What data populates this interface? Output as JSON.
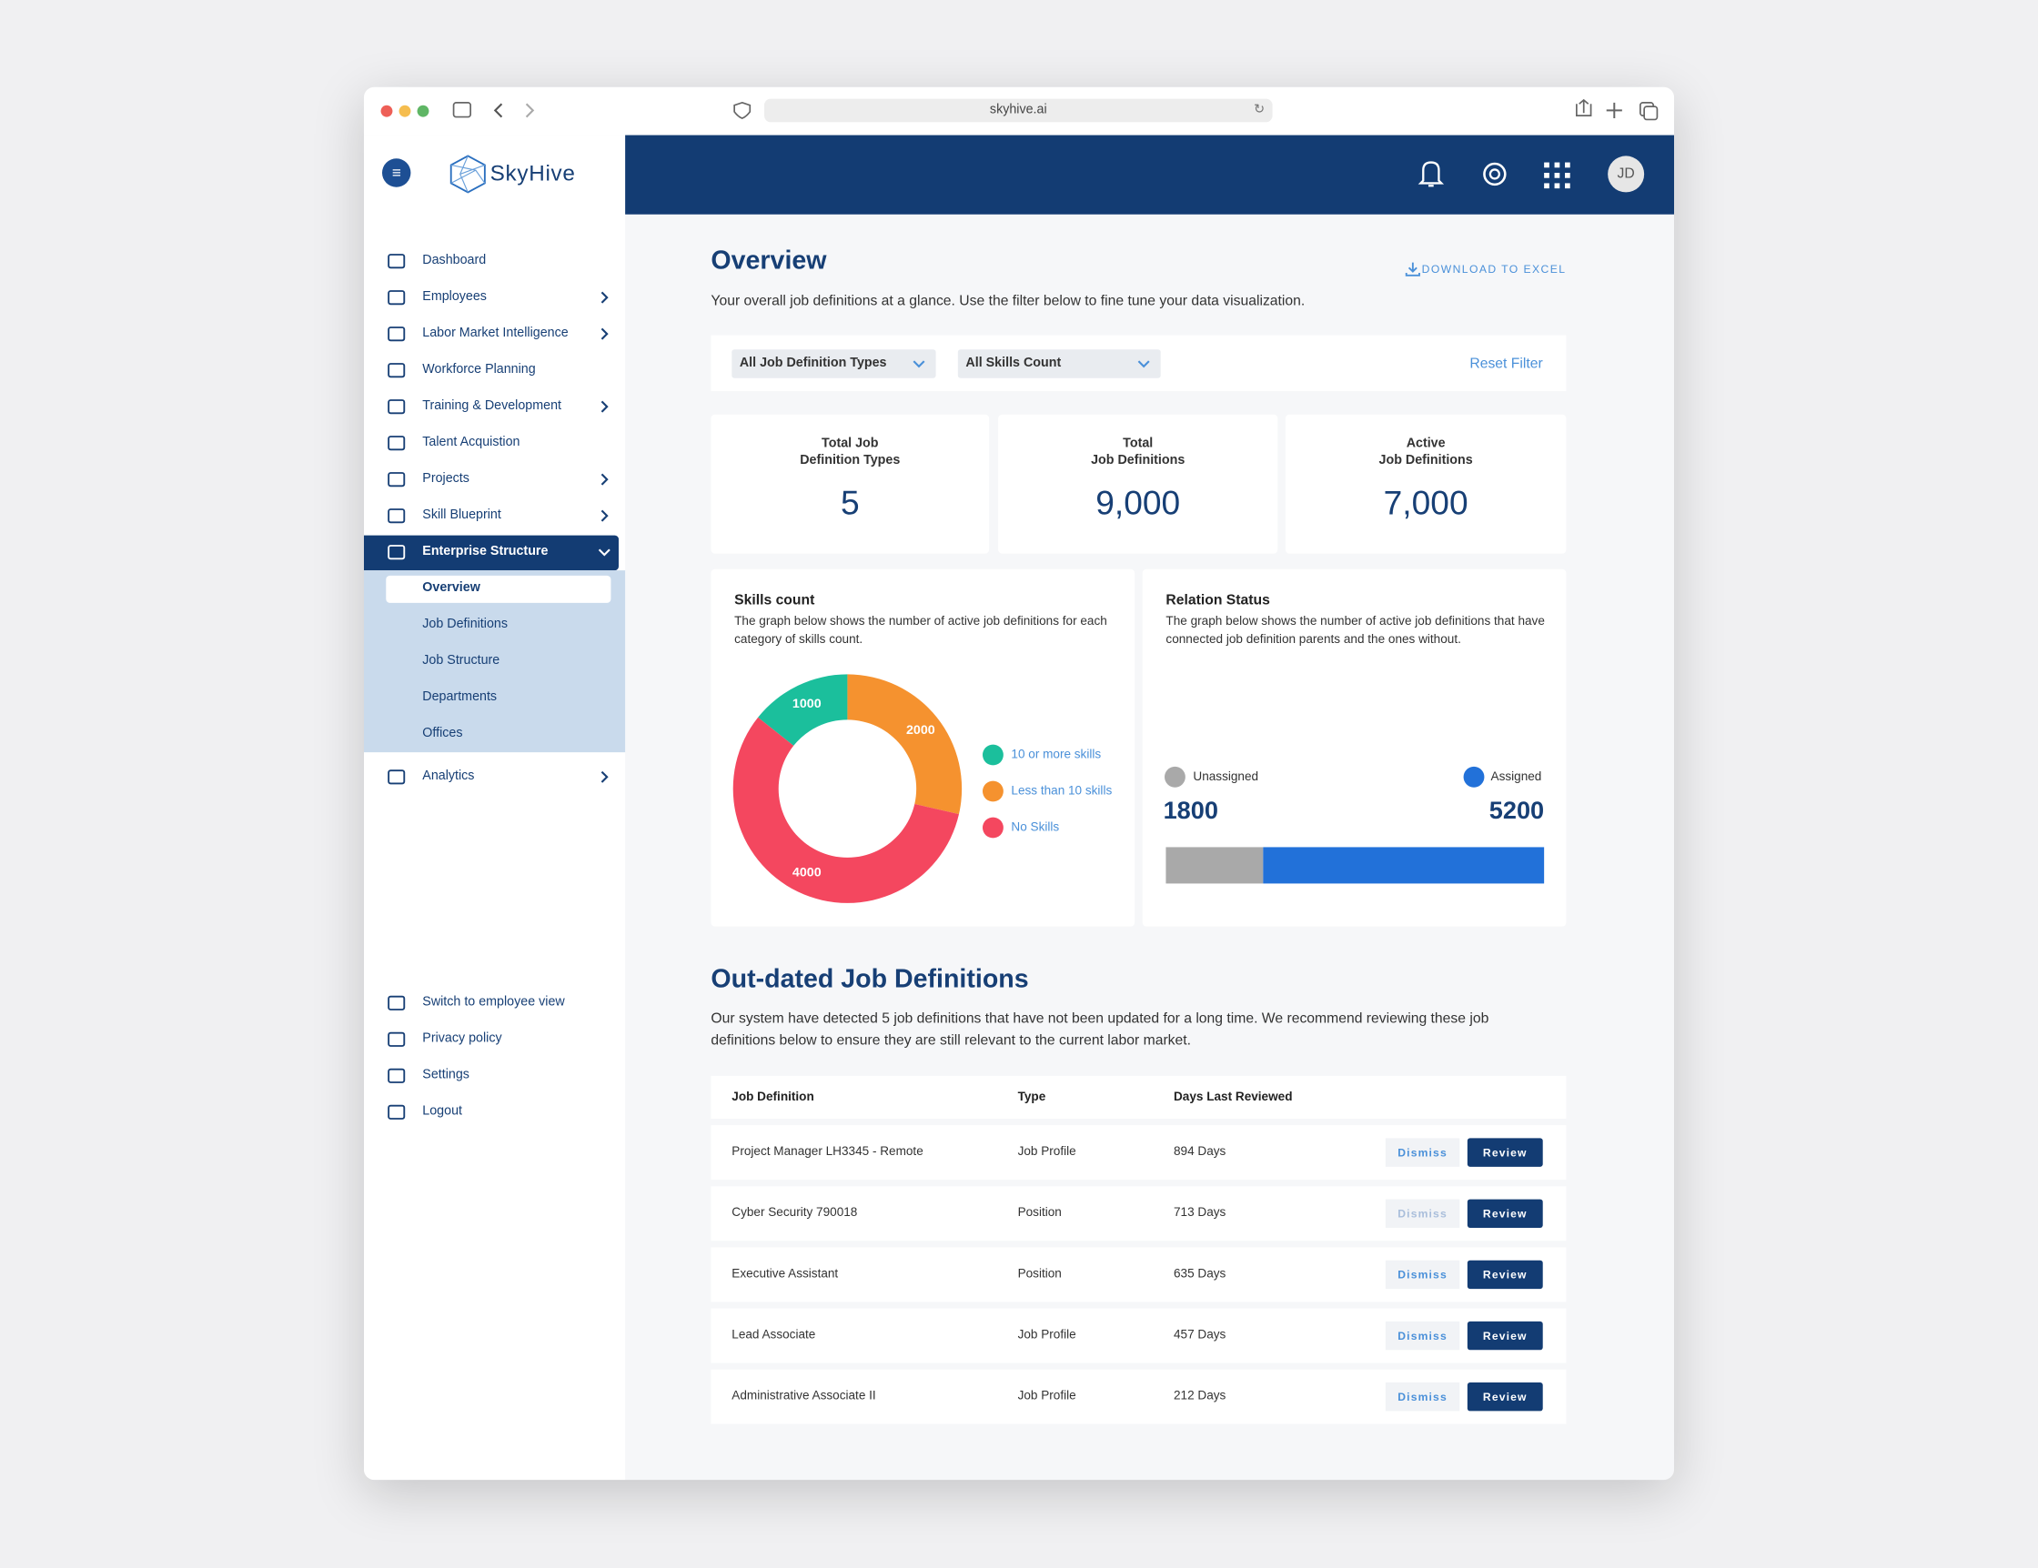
{
  "browser": {
    "url": "skyhive.ai"
  },
  "brand": "SkyHive",
  "user_initials": "JD",
  "sidebar": {
    "menu": [
      "Dashboard",
      "Employees",
      "Labor Market Intelligence",
      "Workforce Planning",
      "Training & Development",
      "Talent Acquistion",
      "Projects",
      "Skill Blueprint",
      "Enterprise Structure"
    ],
    "submenu": [
      "Overview",
      "Job Definitions",
      "Job Structure",
      "Departments",
      "Offices"
    ],
    "after": "Analytics",
    "footer": [
      "Switch to employee view",
      "Privacy policy",
      "Settings",
      "Logout"
    ]
  },
  "overview": {
    "title": "Overview",
    "subtitle": "Your overall job definitions at a glance. Use the filter below to fine tune your data visualization.",
    "download": "DOWNLOAD TO EXCEL",
    "filters": [
      "All Job Definition Types",
      "All Skills Count"
    ],
    "reset": "Reset Filter"
  },
  "kpis": [
    {
      "label_lines": [
        "Total Job",
        "Definition Types"
      ],
      "value": "5"
    },
    {
      "label_lines": [
        "Total",
        "Job Definitions"
      ],
      "value": "9,000"
    },
    {
      "label_lines": [
        "Active",
        "Job Definitions"
      ],
      "value": "7,000"
    }
  ],
  "chart_data": [
    {
      "type": "donut",
      "title": "Skills count",
      "subtitle": "The graph below shows the number of active job definitions for each category of skills count.",
      "categories": [
        "10 or more skills",
        "Less than 10 skills",
        "No Skills"
      ],
      "values": [
        1000,
        2000,
        4000
      ],
      "colors": [
        "#1bbf9c",
        "#f5922f",
        "#f4475f"
      ],
      "legend": "right"
    },
    {
      "type": "stacked-bar",
      "title": "Relation Status",
      "subtitle": "The graph below shows the number of active job definitions that have connected job definition parents and the ones without.",
      "categories": [
        "Unassigned",
        "Assigned"
      ],
      "values": [
        1800,
        5200
      ],
      "colors": [
        "#a9a9a9",
        "#2271d9"
      ]
    }
  ],
  "outdated": {
    "title": "Out-dated Job Definitions",
    "description": "Our system have detected 5 job definitions that have not been updated for a long time. We recommend reviewing these job definitions below to ensure they are still relevant to the current labor market.",
    "columns": [
      "Job Definition",
      "Type",
      "Days Last Reviewed"
    ],
    "rows": [
      [
        "Project Manager LH3345 - Remote",
        "Job Profile",
        "894 Days"
      ],
      [
        "Cyber Security 790018",
        "Position",
        "713 Days"
      ],
      [
        "Executive Assistant",
        "Position",
        "635 Days"
      ],
      [
        "Lead Associate",
        "Job Profile",
        "457 Days"
      ],
      [
        "Administrative Associate II",
        "Job Profile",
        "212 Days"
      ]
    ],
    "actions": [
      "Dismiss",
      "Review"
    ]
  }
}
